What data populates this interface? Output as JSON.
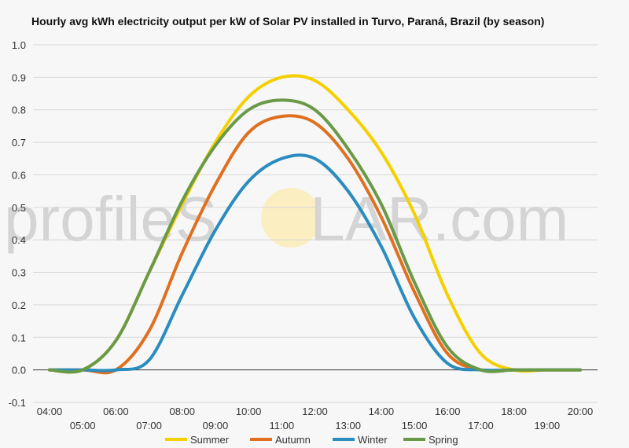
{
  "chart_data": {
    "type": "line",
    "title": "Hourly avg kWh electricity output per kW of Solar PV installed in Turvo, Paraná, Brazil (by season)",
    "xlabel": "",
    "ylabel": "",
    "ylim": [
      -0.1,
      1.0
    ],
    "y_ticks": [
      "-0.1",
      "0.0",
      "0.1",
      "0.2",
      "0.3",
      "0.4",
      "0.5",
      "0.6",
      "0.7",
      "0.8",
      "0.9",
      "1.0"
    ],
    "x": [
      "04:00",
      "05:00",
      "06:00",
      "07:00",
      "08:00",
      "09:00",
      "10:00",
      "11:00",
      "12:00",
      "13:00",
      "14:00",
      "15:00",
      "16:00",
      "17:00",
      "18:00",
      "19:00",
      "20:00"
    ],
    "grid": true,
    "legend_position": "bottom",
    "series": [
      {
        "name": "Summer",
        "color": "#f5d000",
        "values": [
          0.0,
          0.0,
          0.09,
          0.3,
          0.51,
          0.7,
          0.84,
          0.9,
          0.89,
          0.8,
          0.67,
          0.48,
          0.23,
          0.05,
          0.0,
          0.0,
          0.0
        ]
      },
      {
        "name": "Autumn",
        "color": "#e07020",
        "values": [
          0.0,
          0.0,
          0.0,
          0.12,
          0.36,
          0.57,
          0.73,
          0.78,
          0.76,
          0.65,
          0.47,
          0.24,
          0.05,
          0.0,
          0.0,
          0.0,
          0.0
        ]
      },
      {
        "name": "Winter",
        "color": "#2a8cbf",
        "values": [
          0.0,
          0.0,
          0.0,
          0.03,
          0.23,
          0.43,
          0.58,
          0.65,
          0.65,
          0.55,
          0.38,
          0.16,
          0.02,
          0.0,
          0.0,
          0.0,
          0.0
        ]
      },
      {
        "name": "Spring",
        "color": "#6a9a48",
        "values": [
          0.0,
          0.0,
          0.09,
          0.3,
          0.52,
          0.69,
          0.8,
          0.83,
          0.8,
          0.68,
          0.51,
          0.27,
          0.07,
          0.0,
          0.0,
          0.0,
          0.0
        ]
      }
    ]
  },
  "watermark": {
    "part1": "profileS",
    "part2": "LAR.com",
    "sun_color": "#fbeec0"
  }
}
